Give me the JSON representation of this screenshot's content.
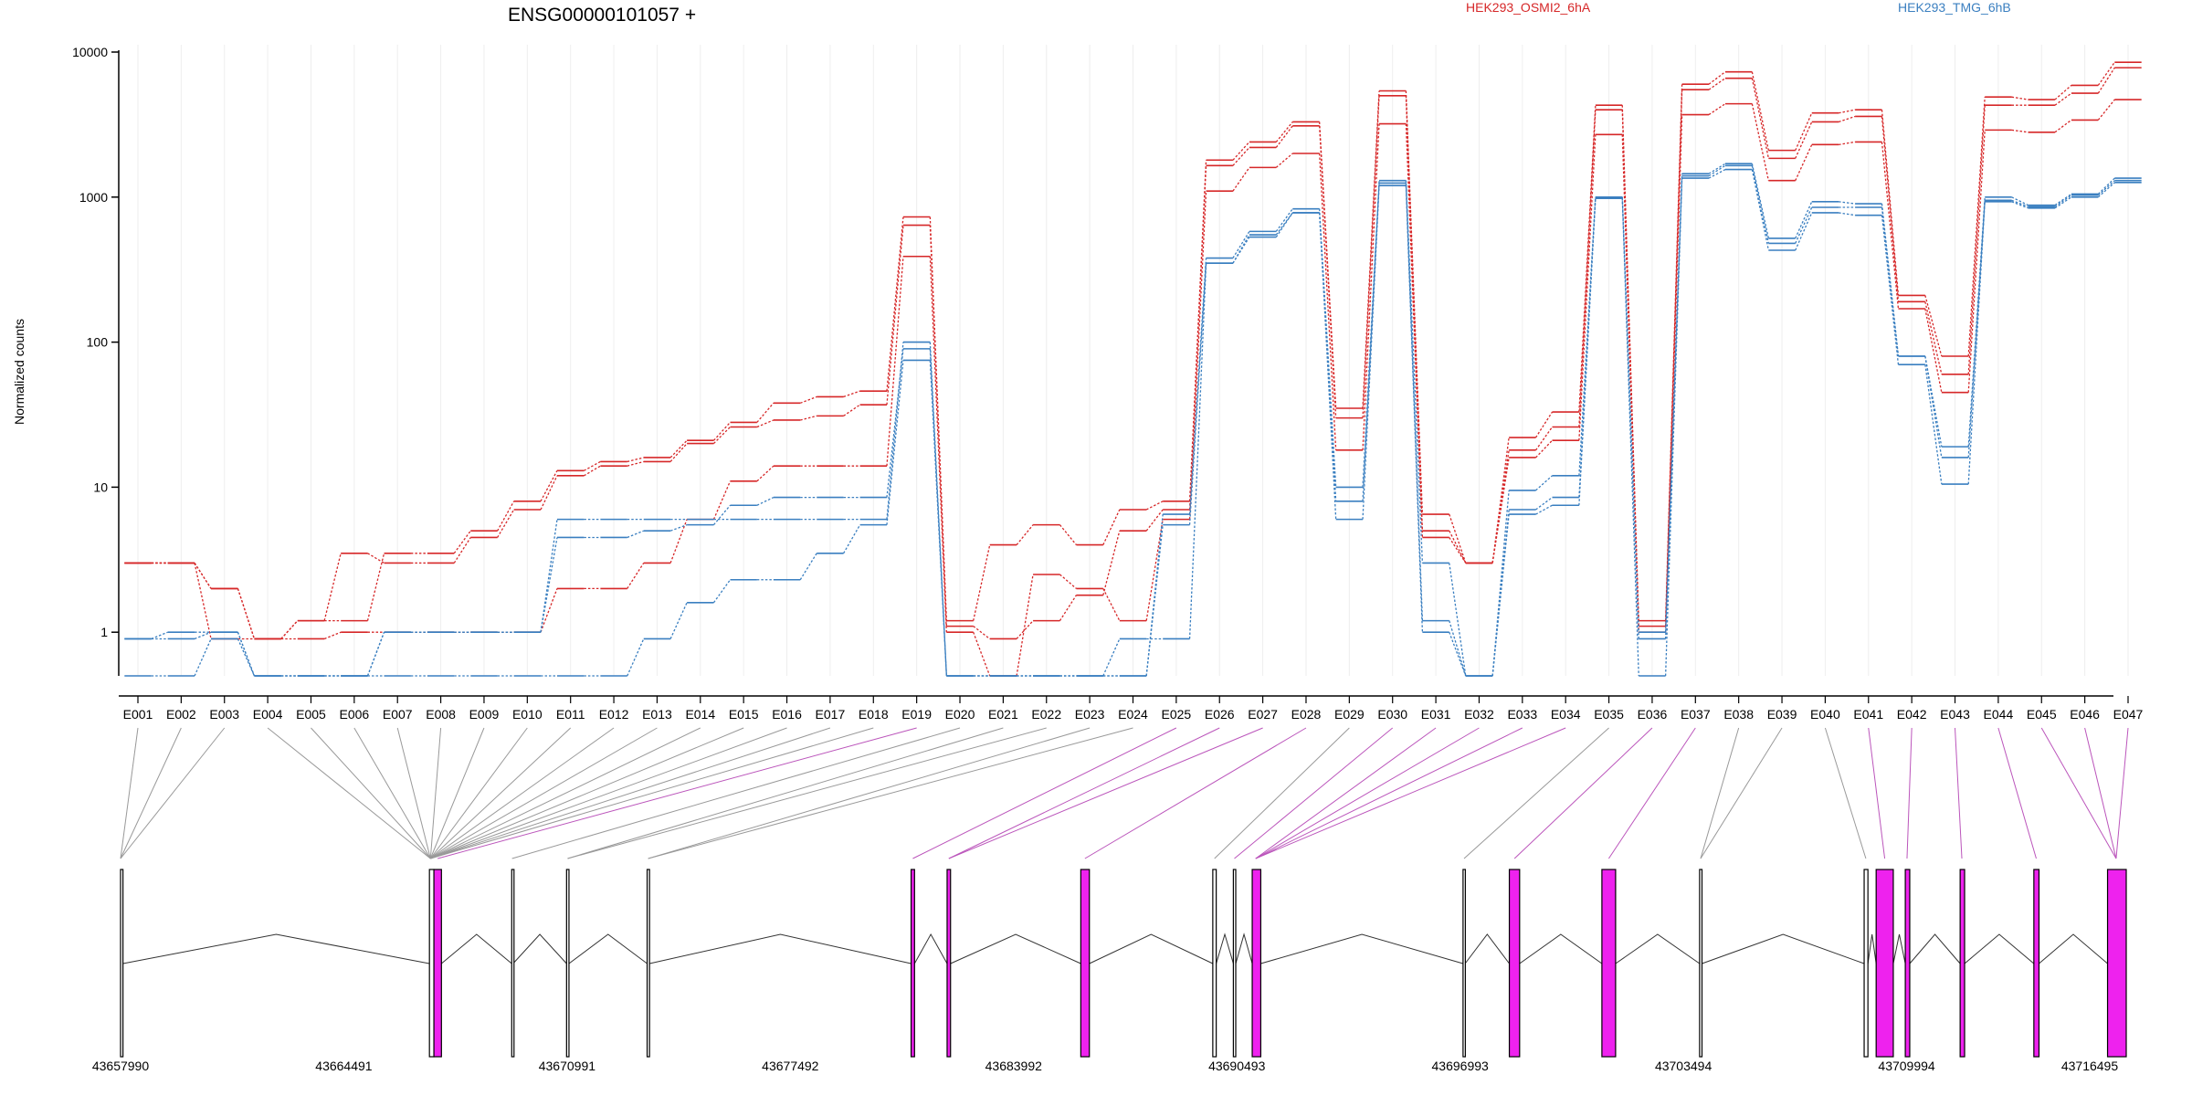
{
  "title": "ENSG00000101057 +",
  "legend": [
    {
      "label": "HEK293_OSMI2_6hA",
      "color": "#d62728"
    },
    {
      "label": "HEK293_TMG_6hB",
      "color": "#3a7fc0"
    }
  ],
  "colors": {
    "highlight": "#ee22ee",
    "connector_grey": "#999999",
    "connector_purple": "#bb55bb"
  },
  "chart_data": {
    "type": "line",
    "scale": "log",
    "ylabel": "Normalized counts",
    "ylim": [
      0.5,
      10000
    ],
    "yticks": [
      1,
      10,
      100,
      1000,
      10000
    ],
    "ytick_labels": [
      "1",
      "10",
      "100",
      "1000",
      "10000"
    ],
    "categories": [
      "E001",
      "E002",
      "E003",
      "E004",
      "E005",
      "E006",
      "E007",
      "E008",
      "E009",
      "E010",
      "E011",
      "E012",
      "E013",
      "E014",
      "E015",
      "E016",
      "E017",
      "E018",
      "E019",
      "E020",
      "E021",
      "E022",
      "E023",
      "E024",
      "E025",
      "E026",
      "E027",
      "E028",
      "E029",
      "E030",
      "E031",
      "E032",
      "E033",
      "E034",
      "E035",
      "E036",
      "E037",
      "E038",
      "E039",
      "E040",
      "E041",
      "E042",
      "E043",
      "E044",
      "E045",
      "E046",
      "E047"
    ],
    "series": [
      {
        "group": 0,
        "values": [
          3,
          3,
          2,
          0.9,
          1.2,
          1.2,
          3.5,
          3.5,
          5,
          8,
          13,
          15,
          16,
          21,
          28,
          38,
          42,
          46,
          730,
          1.2,
          4,
          5.5,
          4,
          7,
          8,
          1800,
          2400,
          3300,
          35,
          5400,
          6.5,
          3,
          22,
          33,
          4300,
          1.2,
          6000,
          7300,
          2100,
          3800,
          4000,
          210,
          80,
          4900,
          4700,
          5900,
          8500
        ]
      },
      {
        "group": 0,
        "values": [
          3,
          3,
          2,
          0.9,
          1.2,
          3.5,
          3,
          3,
          4.5,
          7,
          12,
          14,
          15,
          20,
          26,
          29,
          31,
          37,
          640,
          1.1,
          0.9,
          1.2,
          1.8,
          5,
          7,
          1650,
          2200,
          3100,
          30,
          5000,
          5,
          3,
          18,
          26,
          4000,
          1.1,
          5500,
          6600,
          1850,
          3300,
          3600,
          190,
          60,
          4300,
          4300,
          5200,
          7800
        ]
      },
      {
        "group": 0,
        "values": [
          3,
          3,
          0.9,
          0.9,
          0.9,
          1,
          1,
          1,
          1,
          1,
          2,
          2,
          3,
          6,
          11,
          14,
          14,
          14,
          390,
          1,
          0.5,
          2.5,
          2,
          1.2,
          6,
          1100,
          1600,
          2000,
          18,
          3200,
          4.5,
          3,
          16,
          21,
          2700,
          1,
          3700,
          4400,
          1300,
          2300,
          2400,
          170,
          45,
          2900,
          2800,
          3400,
          4700
        ]
      },
      {
        "group": 1,
        "values": [
          0.9,
          1,
          1,
          0.5,
          0.5,
          0.5,
          1,
          1,
          1,
          1,
          6,
          6,
          6,
          6,
          6,
          6,
          6,
          6,
          100,
          0.5,
          0.5,
          0.5,
          0.5,
          0.5,
          6.5,
          380,
          580,
          830,
          10,
          1300,
          3,
          0.5,
          9.5,
          12,
          1000,
          0.9,
          1450,
          1700,
          520,
          930,
          900,
          80,
          19,
          1000,
          880,
          1050,
          1350
        ]
      },
      {
        "group": 1,
        "values": [
          0.9,
          0.9,
          1,
          0.5,
          0.5,
          0.5,
          1,
          1,
          1,
          1,
          4.5,
          4.5,
          5,
          5.5,
          7.5,
          8.5,
          8.5,
          8.5,
          90,
          0.5,
          0.5,
          0.5,
          0.5,
          0.5,
          5.5,
          350,
          550,
          780,
          8,
          1250,
          1.2,
          0.5,
          7,
          8.5,
          1000,
          1,
          1400,
          1650,
          480,
          850,
          850,
          80,
          16,
          950,
          860,
          1030,
          1300
        ]
      },
      {
        "group": 1,
        "values": [
          0.5,
          0.5,
          0.9,
          0.5,
          0.5,
          0.5,
          0.5,
          0.5,
          0.5,
          0.5,
          0.5,
          0.5,
          0.9,
          1.6,
          2.3,
          2.3,
          3.5,
          5.5,
          75,
          0.5,
          0.5,
          0.5,
          0.5,
          0.9,
          0.9,
          350,
          530,
          780,
          6,
          1200,
          1,
          0.5,
          6.5,
          7.5,
          980,
          0.5,
          1350,
          1550,
          430,
          780,
          750,
          70,
          10.5,
          930,
          840,
          1000,
          1260
        ]
      }
    ]
  },
  "gene_model": {
    "coord_labels": [
      "43657990",
      "43664491",
      "43670991",
      "43677492",
      "43683992",
      "43690493",
      "43696993",
      "43703494",
      "43709994",
      "43716495"
    ],
    "coord_range": [
      43657990,
      43716495
    ],
    "exons": [
      {
        "start": 43657990,
        "end": 43658060,
        "hl": false
      },
      {
        "start": 43667000,
        "end": 43667130,
        "hl": false
      },
      {
        "start": 43667130,
        "end": 43667350,
        "hl": true
      },
      {
        "start": 43669400,
        "end": 43669440,
        "hl": false
      },
      {
        "start": 43671000,
        "end": 43671070,
        "hl": false
      },
      {
        "start": 43673350,
        "end": 43673420,
        "hl": false
      },
      {
        "start": 43681050,
        "end": 43681150,
        "hl": true
      },
      {
        "start": 43682100,
        "end": 43682200,
        "hl": true
      },
      {
        "start": 43686000,
        "end": 43686250,
        "hl": true
      },
      {
        "start": 43689850,
        "end": 43689950,
        "hl": false
      },
      {
        "start": 43690450,
        "end": 43690520,
        "hl": false
      },
      {
        "start": 43691000,
        "end": 43691250,
        "hl": true
      },
      {
        "start": 43697150,
        "end": 43697210,
        "hl": false
      },
      {
        "start": 43698500,
        "end": 43698800,
        "hl": true
      },
      {
        "start": 43701200,
        "end": 43701600,
        "hl": true
      },
      {
        "start": 43704050,
        "end": 43704120,
        "hl": false
      },
      {
        "start": 43708850,
        "end": 43708960,
        "hl": false
      },
      {
        "start": 43709200,
        "end": 43709700,
        "hl": true
      },
      {
        "start": 43710050,
        "end": 43710180,
        "hl": true
      },
      {
        "start": 43711650,
        "end": 43711780,
        "hl": true
      },
      {
        "start": 43713800,
        "end": 43713950,
        "hl": true
      },
      {
        "start": 43715950,
        "end": 43716495,
        "hl": true
      }
    ],
    "feature_anchors": [
      43657990,
      43657990,
      43657990,
      43667030,
      43667030,
      43667030,
      43667030,
      43667030,
      43667030,
      43667030,
      43667030,
      43667030,
      43667030,
      43667030,
      43667030,
      43667030,
      43667030,
      43667030,
      43667240,
      43669410,
      43671030,
      43671030,
      43673380,
      43673380,
      43681100,
      43682150,
      43682150,
      43686120,
      43689900,
      43690480,
      43691100,
      43691100,
      43691100,
      43691100,
      43697180,
      43698650,
      43701400,
      43704080,
      43704080,
      43708900,
      43709450,
      43710100,
      43711700,
      43713870,
      43716200,
      43716200,
      43716200
    ],
    "feature_highlight": [
      false,
      false,
      false,
      false,
      false,
      false,
      false,
      false,
      false,
      false,
      false,
      false,
      false,
      false,
      false,
      false,
      false,
      false,
      true,
      false,
      false,
      false,
      false,
      false,
      true,
      true,
      true,
      true,
      false,
      true,
      true,
      true,
      true,
      true,
      false,
      true,
      true,
      false,
      false,
      false,
      true,
      true,
      true,
      true,
      true,
      true,
      true
    ]
  }
}
